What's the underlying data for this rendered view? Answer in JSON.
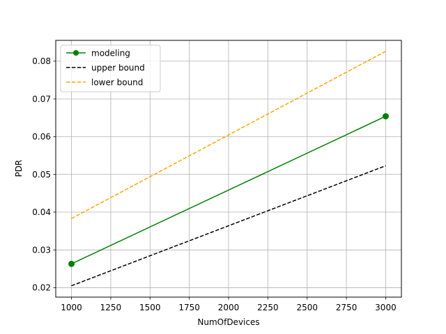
{
  "chart_data": {
    "type": "line",
    "xlabel": "NumOfDevices",
    "ylabel": "PDR",
    "xlim": [
      900,
      3100
    ],
    "ylim": [
      0.0175,
      0.0855
    ],
    "xticks": [
      1000,
      1250,
      1500,
      1750,
      2000,
      2250,
      2500,
      2750,
      3000
    ],
    "yticks": [
      0.02,
      0.03,
      0.04,
      0.05,
      0.06,
      0.07,
      0.08
    ],
    "xtick_labels": [
      "1000",
      "1250",
      "1500",
      "1750",
      "2000",
      "2250",
      "2500",
      "2750",
      "3000"
    ],
    "ytick_labels": [
      "0.02",
      "0.03",
      "0.04",
      "0.05",
      "0.06",
      "0.07",
      "0.08"
    ],
    "grid": true,
    "legend_position": "top-left",
    "series": [
      {
        "name": "modeling",
        "x": [
          1000,
          3000
        ],
        "y": [
          0.0263,
          0.0654
        ],
        "color": "#008000",
        "style": "solid",
        "marker": "circle"
      },
      {
        "name": "upper bound",
        "x": [
          1000,
          3000
        ],
        "y": [
          0.0205,
          0.0523
        ],
        "color": "#000000",
        "style": "dashed",
        "marker": "none"
      },
      {
        "name": "lower bound",
        "x": [
          1000,
          3000
        ],
        "y": [
          0.0383,
          0.0826
        ],
        "color": "#ffa500",
        "style": "dashed",
        "marker": "none"
      }
    ]
  }
}
